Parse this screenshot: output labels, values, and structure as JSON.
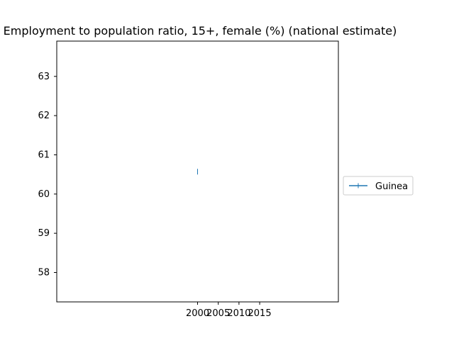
{
  "chart_data": {
    "type": "line",
    "title": "Employment to population ratio, 15+, female (%) (national estimate)",
    "xlabel": "",
    "ylabel": "",
    "x_ticks": [
      2000,
      2005,
      2010,
      2015
    ],
    "x_tick_labels": [
      "2000",
      "2005",
      "2010",
      "2015"
    ],
    "y_ticks": [
      58,
      59,
      60,
      61,
      62,
      63
    ],
    "y_tick_labels": [
      "58",
      "59",
      "60",
      "61",
      "62",
      "63"
    ],
    "xlim": [
      1966,
      2034
    ],
    "ylim": [
      57.25,
      63.9
    ],
    "grid": false,
    "legend_position": "center-right-outside",
    "series": [
      {
        "name": "Guinea",
        "color": "#1f77b4",
        "marker": "vline",
        "points": [
          {
            "x": 2000,
            "y": 60.57
          }
        ]
      }
    ]
  }
}
